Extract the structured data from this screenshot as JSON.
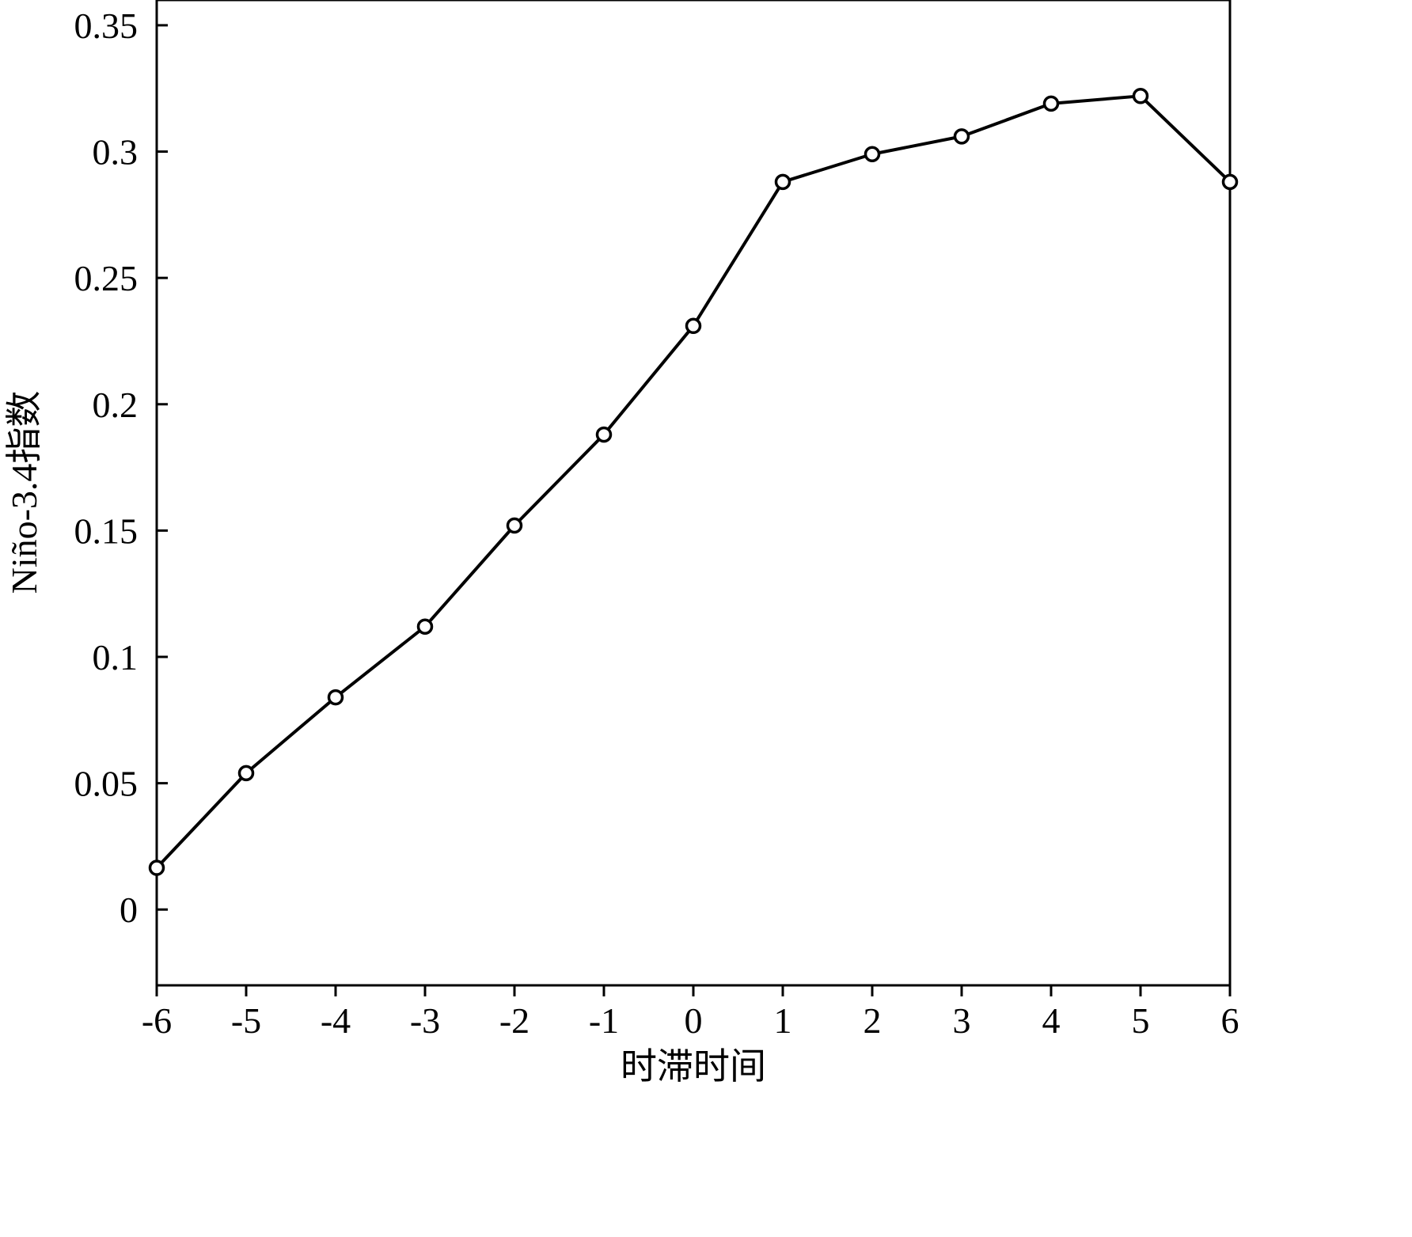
{
  "chart_data": {
    "type": "line",
    "title": "",
    "xlabel": "时滞时间",
    "ylabel": "Niño-3.4指数",
    "x": [
      -6,
      -5,
      -4,
      -3,
      -2,
      -1,
      0,
      1,
      2,
      3,
      4,
      5,
      6
    ],
    "series": [
      {
        "values": [
          0.0165,
          0.054,
          0.084,
          0.112,
          0.152,
          0.188,
          0.231,
          0.288,
          0.299,
          0.306,
          0.319,
          0.322,
          0.288
        ],
        "color": "#000000",
        "marker": "open-circle"
      }
    ],
    "xlim": [
      -6,
      6
    ],
    "ylim": [
      -0.03,
      0.36
    ],
    "xticks": [
      "-6",
      "-5",
      "-4",
      "-3",
      "-2",
      "-1",
      "0",
      "1",
      "2",
      "3",
      "4",
      "5",
      "6"
    ],
    "yticks": [
      "0",
      "0.05",
      "0.1",
      "0.15",
      "0.2",
      "0.25",
      "0.3",
      "0.35"
    ],
    "grid": false,
    "legend": "none"
  }
}
